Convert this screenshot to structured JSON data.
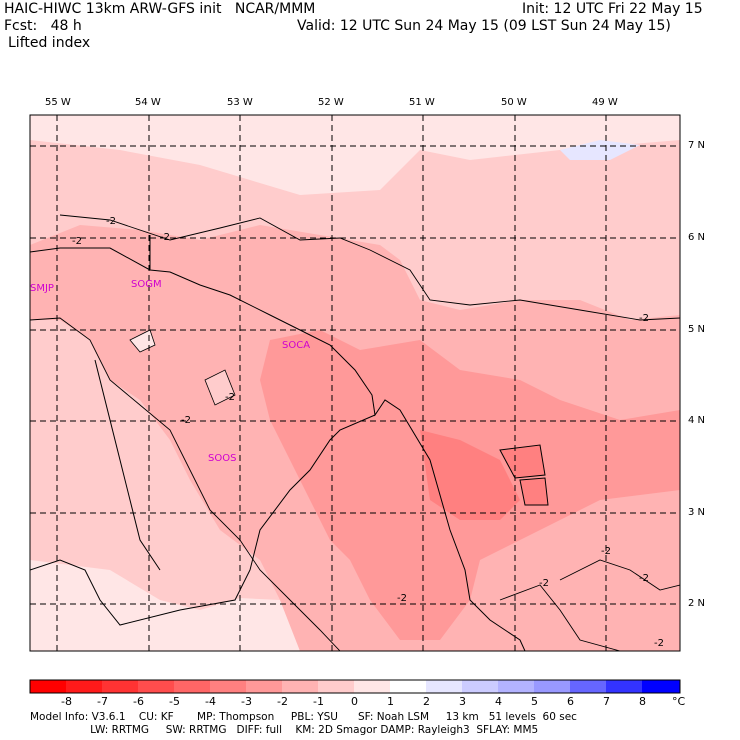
{
  "header": {
    "model_line": "HAIC-HIWC 13km ARW-GFS init   NCAR/MMM",
    "fcst_line": "Fcst:   48 h",
    "field_name": "Lifted index",
    "init_line": "Init: 12 UTC Fri 22 May 15",
    "valid_line": "Valid: 12 UTC Sun 24 May 15 (09 LST Sun 24 May 15)"
  },
  "map": {
    "longitude_labels": [
      "55 W",
      "54 W",
      "53 W",
      "52 W",
      "51 W",
      "50 W",
      "49 W"
    ],
    "latitude_labels": [
      "7 N",
      "6 N",
      "5 N",
      "4 N",
      "3 N",
      "2 N"
    ],
    "contour_labels": [
      "-2"
    ],
    "stations": [
      "SMJP",
      "SOGM",
      "SOCA",
      "SOOS"
    ]
  },
  "colorbar": {
    "ticks": [
      "-8",
      "-7",
      "-6",
      "-5",
      "-4",
      "-3",
      "-2",
      "-1",
      "0",
      "1",
      "2",
      "3",
      "4",
      "5",
      "6",
      "7",
      "8"
    ],
    "unit": "°C",
    "colors": [
      "#ff0000",
      "#ff1a1a",
      "#ff3333",
      "#ff4d4d",
      "#ff6666",
      "#ff8080",
      "#ff9999",
      "#ffb3b3",
      "#ffcccc",
      "#ffe6e6",
      "#ffffff",
      "#e6e6ff",
      "#ccccff",
      "#b3b3ff",
      "#9999ff",
      "#6666ff",
      "#3333ff",
      "#0000ff"
    ]
  },
  "footer": {
    "line1": "Model Info: V3.6.1    CU: KF       MP: Thompson     PBL: YSU      SF: Noah LSM     13 km   51 levels  60 sec",
    "line2": "                  LW: RRTMG     SW: RRTMG   DIFF: full    KM: 2D Smagor DAMP: Rayleigh3  SFLAY: MM5"
  }
}
